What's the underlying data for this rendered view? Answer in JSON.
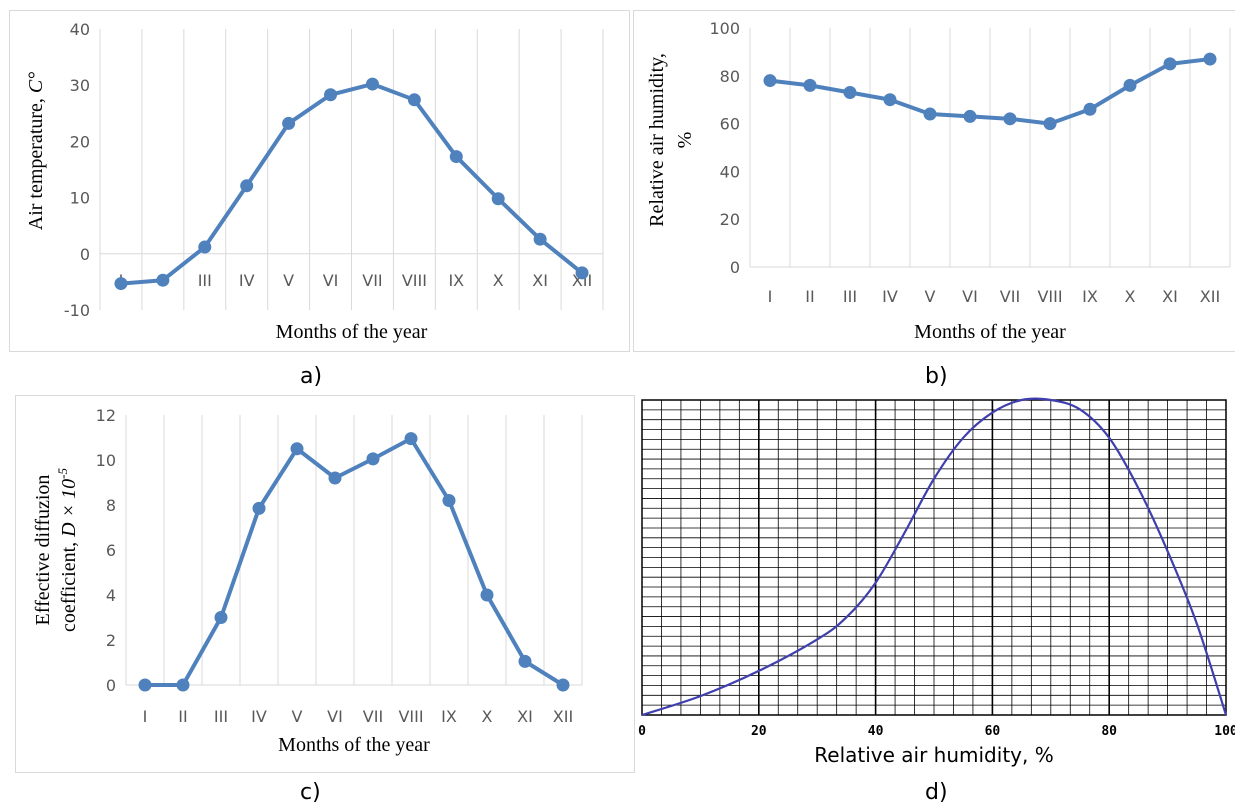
{
  "chart_data": [
    {
      "id": "a",
      "type": "line",
      "caption": "a)",
      "categories": [
        "I",
        "II",
        "III",
        "IV",
        "V",
        "VI",
        "VII",
        "VIII",
        "IX",
        "X",
        "XI",
        "XII"
      ],
      "values": [
        -5.3,
        -4.7,
        1.2,
        12.1,
        23.2,
        28.3,
        30.2,
        27.4,
        17.3,
        9.8,
        2.6,
        -3.4
      ],
      "xlabel": "Months of the year",
      "ylabel_text": "Air temperature, ",
      "ylabel_unit": "C°",
      "ylim": [
        -10,
        40
      ],
      "yticks": [
        "-10",
        "0",
        "10",
        "20",
        "30",
        "40"
      ],
      "grid": "vertical",
      "color": "#4f81bd"
    },
    {
      "id": "b",
      "type": "line",
      "caption": "b)",
      "categories": [
        "I",
        "II",
        "III",
        "IV",
        "V",
        "VI",
        "VII",
        "VIII",
        "IX",
        "X",
        "XI",
        "XII"
      ],
      "values": [
        78,
        76,
        73,
        70,
        64,
        63,
        62,
        60,
        66,
        76,
        85,
        87
      ],
      "xlabel": "Months of the year",
      "ylabel_line1": "Relative air humidity,",
      "ylabel_line2": "%",
      "ylim": [
        0,
        100
      ],
      "yticks": [
        "0",
        "20",
        "40",
        "60",
        "80",
        "100"
      ],
      "grid": "vertical",
      "color": "#4f81bd"
    },
    {
      "id": "c",
      "type": "line",
      "caption": "c)",
      "categories": [
        "I",
        "II",
        "III",
        "IV",
        "V",
        "VI",
        "VII",
        "VIII",
        "IX",
        "X",
        "XI",
        "XII"
      ],
      "values": [
        0,
        0,
        3,
        7.85,
        10.5,
        9.2,
        10.05,
        10.95,
        8.2,
        4.0,
        1.05,
        0
      ],
      "xlabel": "Months of the year",
      "ylabel_line1": "Effective diffuzion",
      "ylabel_line2": "coefficient, ",
      "ylabel_symbol": "D × 10",
      "ylabel_exp": "-5",
      "ylim": [
        0,
        12
      ],
      "yticks": [
        "0",
        "2",
        "4",
        "6",
        "8",
        "10",
        "12"
      ],
      "grid": "vertical",
      "color": "#4f81bd"
    },
    {
      "id": "d",
      "type": "line",
      "caption": "d)",
      "x": [
        0,
        10,
        20,
        30,
        35,
        40,
        45,
        50,
        55,
        60,
        65,
        70,
        75,
        80,
        85,
        90,
        95,
        100
      ],
      "values": [
        0,
        0.06,
        0.14,
        0.24,
        0.31,
        0.42,
        0.58,
        0.75,
        0.88,
        0.96,
        1.0,
        1.0,
        0.97,
        0.88,
        0.72,
        0.52,
        0.29,
        0
      ],
      "xlabel": "Relative air humidity, %",
      "xticks": [
        "0",
        "20",
        "40",
        "60",
        "80",
        "100"
      ],
      "xlim": [
        0,
        100
      ],
      "ylim": [
        0,
        1.0
      ],
      "grid": "both",
      "color": "#3f3fae"
    }
  ]
}
